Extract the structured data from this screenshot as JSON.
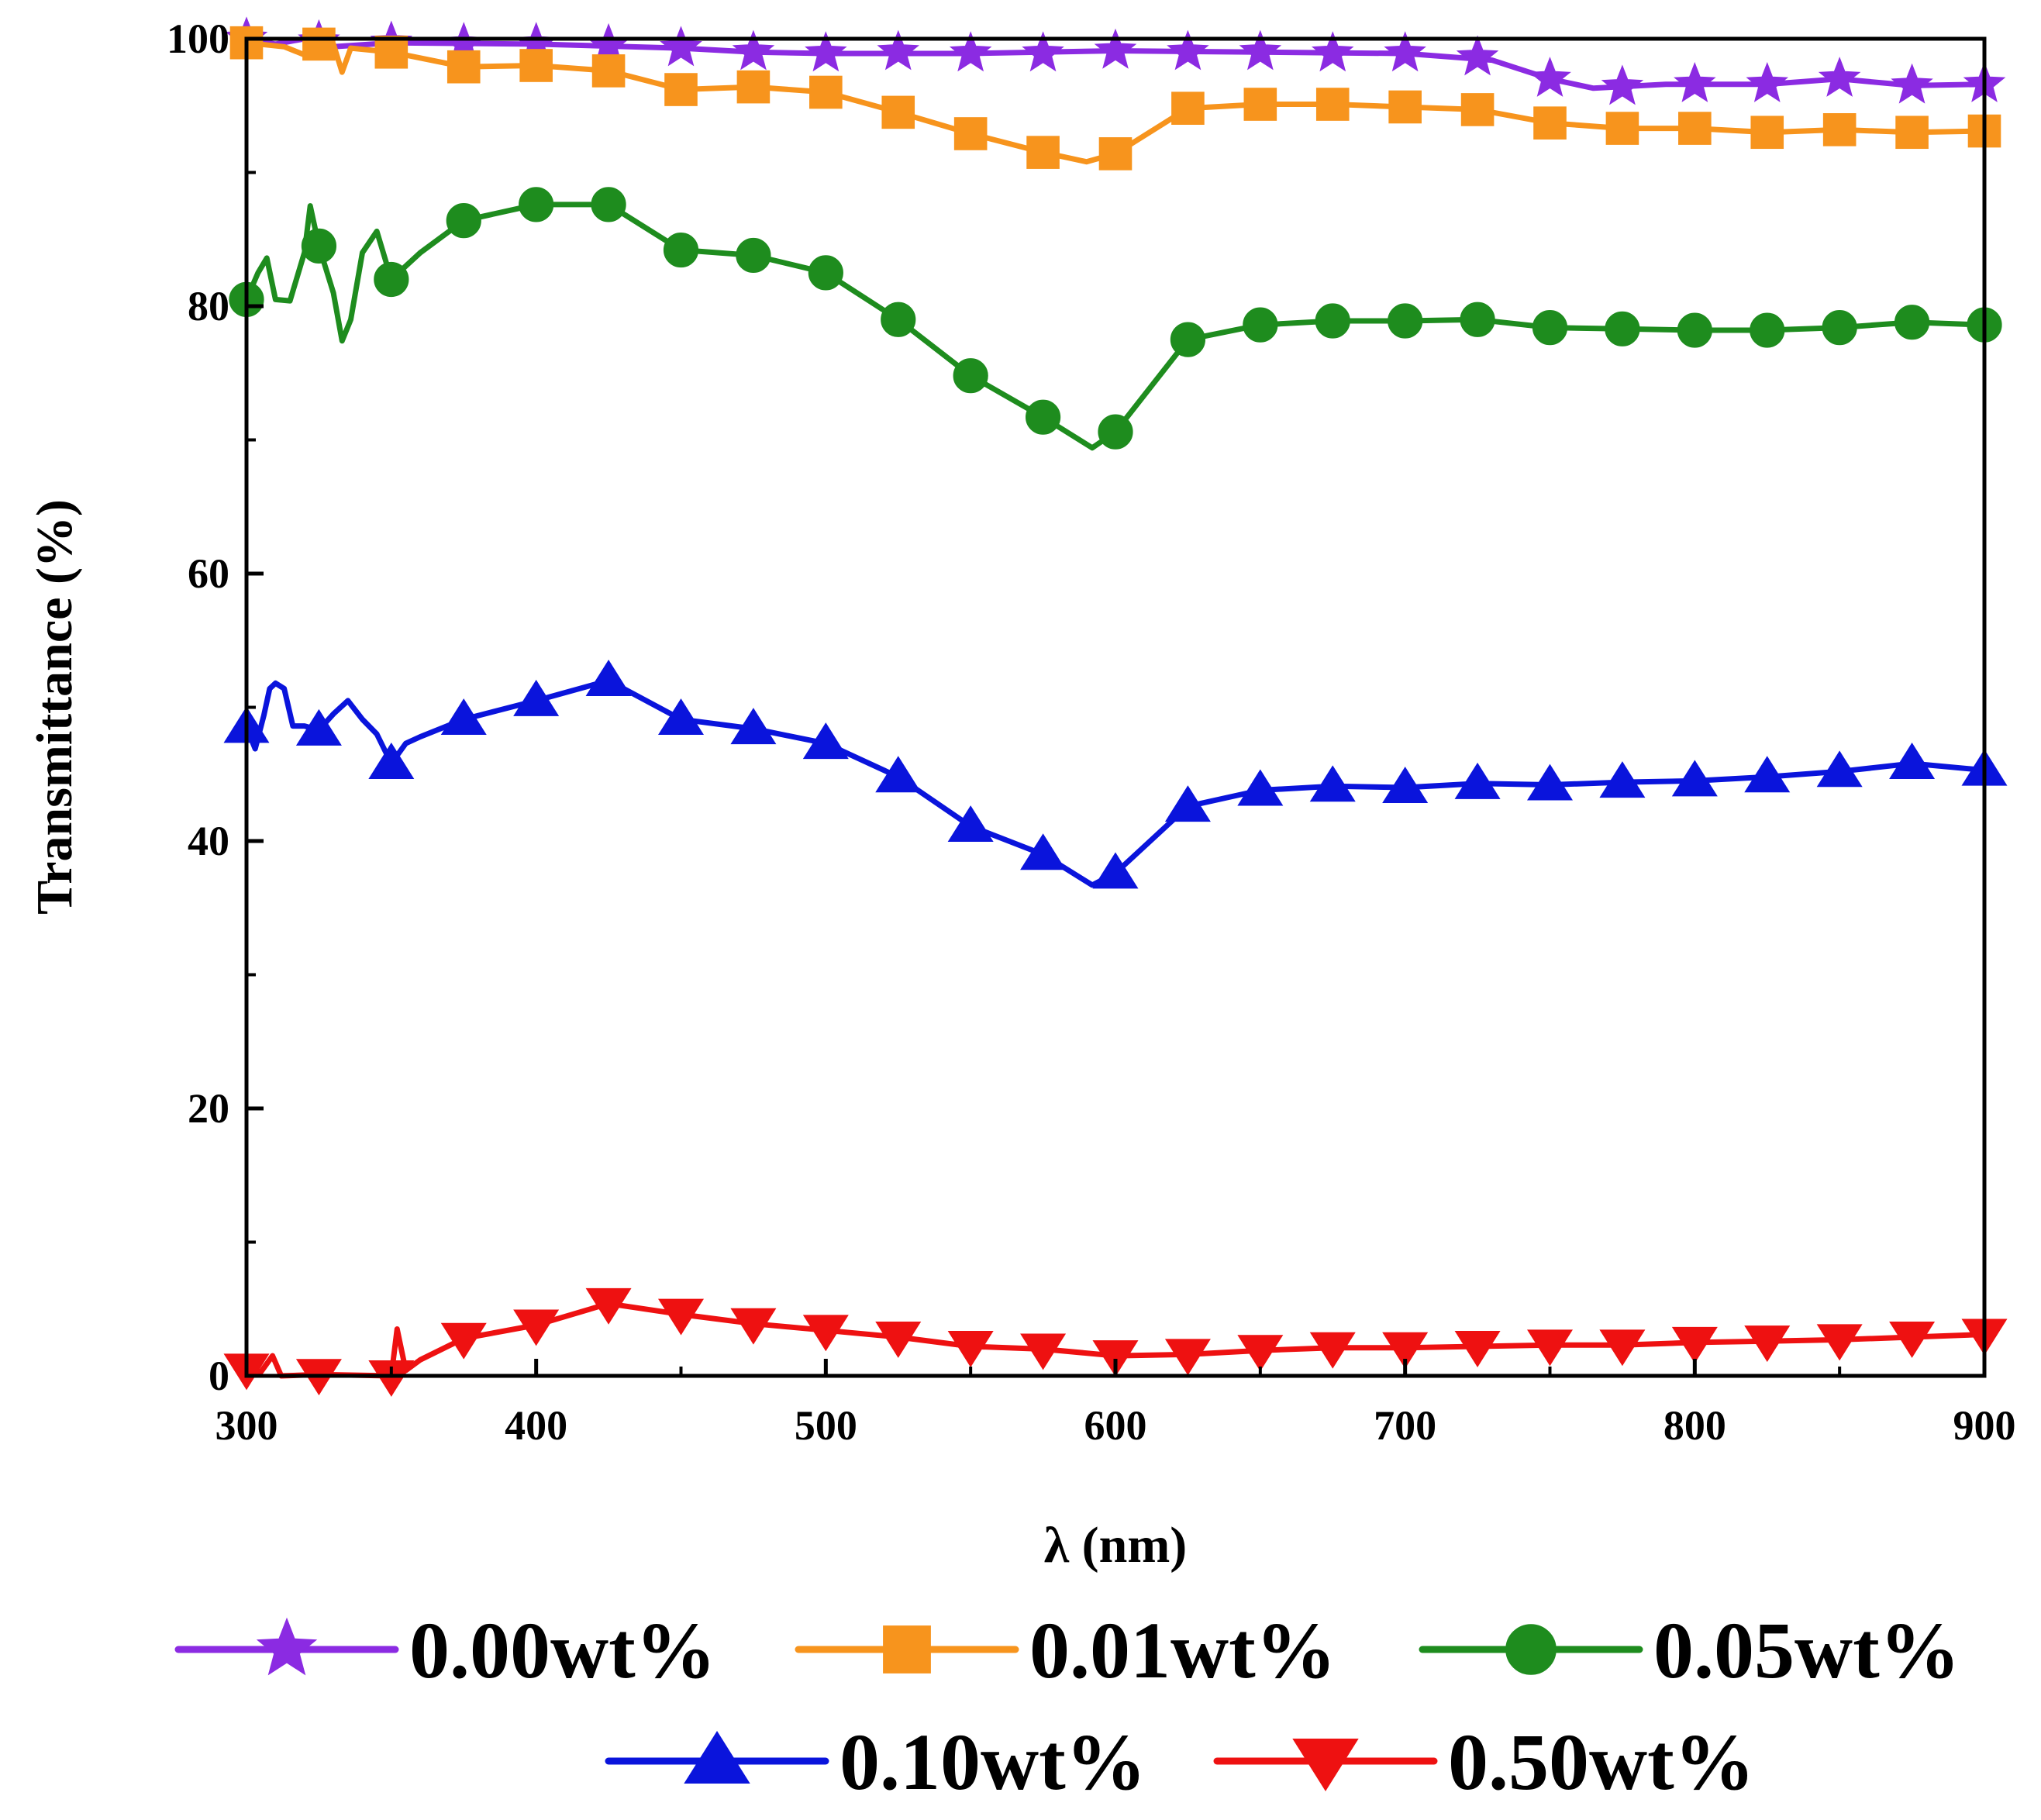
{
  "chart_data": {
    "type": "line",
    "title": "",
    "xlabel": "λ (nm)",
    "ylabel": "Transmittance (%)",
    "xlim": [
      300,
      900
    ],
    "ylim": [
      0,
      100
    ],
    "xticks": [
      300,
      400,
      500,
      600,
      700,
      800,
      900
    ],
    "yticks": [
      0,
      20,
      40,
      60,
      80,
      100
    ],
    "x_tick_labels": [
      "300",
      "400",
      "500",
      "600",
      "700",
      "800",
      "900"
    ],
    "y_tick_labels": [
      "0",
      "20",
      "40",
      "60",
      "80",
      "100"
    ],
    "legend_position": "bottom",
    "x": [
      300,
      325,
      350,
      375,
      400,
      425,
      450,
      475,
      500,
      525,
      550,
      575,
      600,
      625,
      650,
      675,
      700,
      725,
      750,
      775,
      800,
      825,
      850,
      875,
      900
    ],
    "series": [
      {
        "name": "0.00wt%",
        "color": "#8b2be2",
        "marker": "star",
        "values": [
          100,
          99.8,
          99.7,
          99.6,
          99.6,
          99.5,
          99.3,
          99.0,
          98.9,
          99.0,
          98.9,
          98.9,
          99.1,
          99.0,
          99.0,
          98.9,
          98.9,
          98.6,
          97.0,
          96.4,
          96.6,
          96.6,
          97.0,
          96.5,
          96.6
        ],
        "line_points": [
          [
            300,
            100
          ],
          [
            310,
            99.6
          ],
          [
            320,
            100
          ],
          [
            330,
            99.4
          ],
          [
            350,
            99.7
          ],
          [
            400,
            99.6
          ],
          [
            450,
            99.3
          ],
          [
            475,
            99.0
          ],
          [
            500,
            98.9
          ],
          [
            550,
            98.9
          ],
          [
            600,
            99.1
          ],
          [
            650,
            99.0
          ],
          [
            700,
            98.9
          ],
          [
            730,
            98.4
          ],
          [
            750,
            97.0
          ],
          [
            765,
            96.3
          ],
          [
            790,
            96.6
          ],
          [
            825,
            96.6
          ],
          [
            850,
            97.0
          ],
          [
            875,
            96.5
          ],
          [
            900,
            96.6
          ]
        ]
      },
      {
        "name": "0.01wt%",
        "color": "#f7941d",
        "marker": "square",
        "values": [
          99.7,
          99.6,
          99.0,
          97.9,
          98.0,
          97.6,
          96.2,
          96.4,
          96.0,
          94.5,
          92.9,
          91.5,
          91.4,
          94.8,
          95.1,
          95.1,
          94.9,
          94.7,
          93.7,
          93.3,
          93.3,
          93.0,
          93.2,
          93.0,
          93.1
        ],
        "line_points": [
          [
            300,
            99.7
          ],
          [
            313,
            99.4
          ],
          [
            320,
            98.8
          ],
          [
            330,
            99.6
          ],
          [
            333,
            97.5
          ],
          [
            336,
            99.3
          ],
          [
            350,
            99.0
          ],
          [
            375,
            97.9
          ],
          [
            400,
            98.0
          ],
          [
            425,
            97.6
          ],
          [
            450,
            96.2
          ],
          [
            475,
            96.4
          ],
          [
            500,
            96.0
          ],
          [
            525,
            94.5
          ],
          [
            550,
            92.9
          ],
          [
            575,
            91.5
          ],
          [
            590,
            90.8
          ],
          [
            600,
            91.4
          ],
          [
            625,
            94.8
          ],
          [
            650,
            95.1
          ],
          [
            675,
            95.1
          ],
          [
            700,
            94.9
          ],
          [
            725,
            94.7
          ],
          [
            750,
            93.7
          ],
          [
            775,
            93.3
          ],
          [
            800,
            93.3
          ],
          [
            825,
            93.0
          ],
          [
            850,
            93.2
          ],
          [
            875,
            93.0
          ],
          [
            900,
            93.1
          ]
        ]
      },
      {
        "name": "0.05wt%",
        "color": "#1e8c1e",
        "marker": "circle",
        "values": [
          80.5,
          84.5,
          82.0,
          86.4,
          87.6,
          87.6,
          84.2,
          83.8,
          82.5,
          79.0,
          74.8,
          71.7,
          70.6,
          77.5,
          78.6,
          78.9,
          78.9,
          79.0,
          78.4,
          78.3,
          78.2,
          78.2,
          78.4,
          78.8,
          78.6
        ],
        "line_points": [
          [
            300,
            80.5
          ],
          [
            304,
            82.5
          ],
          [
            307,
            83.6
          ],
          [
            310,
            80.5
          ],
          [
            315,
            80.4
          ],
          [
            320,
            84.0
          ],
          [
            322,
            87.5
          ],
          [
            325,
            84.5
          ],
          [
            330,
            81.0
          ],
          [
            333,
            77.4
          ],
          [
            336,
            79.0
          ],
          [
            340,
            84.0
          ],
          [
            345,
            85.6
          ],
          [
            350,
            82.0
          ],
          [
            360,
            84.0
          ],
          [
            375,
            86.4
          ],
          [
            400,
            87.6
          ],
          [
            425,
            87.6
          ],
          [
            450,
            84.2
          ],
          [
            475,
            83.8
          ],
          [
            500,
            82.5
          ],
          [
            525,
            79.0
          ],
          [
            550,
            74.8
          ],
          [
            575,
            71.7
          ],
          [
            592,
            69.4
          ],
          [
            600,
            70.6
          ],
          [
            625,
            77.5
          ],
          [
            650,
            78.6
          ],
          [
            675,
            78.9
          ],
          [
            700,
            78.9
          ],
          [
            725,
            79.0
          ],
          [
            750,
            78.4
          ],
          [
            775,
            78.3
          ],
          [
            800,
            78.2
          ],
          [
            825,
            78.2
          ],
          [
            850,
            78.4
          ],
          [
            875,
            78.8
          ],
          [
            900,
            78.6
          ]
        ]
      },
      {
        "name": "0.10wt%",
        "color": "#0a14dc",
        "marker": "triangle-up",
        "values": [
          48.5,
          48.3,
          45.8,
          49.1,
          50.5,
          52.0,
          49.1,
          48.4,
          47.3,
          44.8,
          41.1,
          39.0,
          37.6,
          42.6,
          43.8,
          44.1,
          44.0,
          44.3,
          44.2,
          44.4,
          44.5,
          44.8,
          45.2,
          45.8,
          45.3
        ],
        "line_points": [
          [
            300,
            48.5
          ],
          [
            303,
            46.9
          ],
          [
            306,
            49.4
          ],
          [
            308,
            51.4
          ],
          [
            310,
            51.8
          ],
          [
            313,
            51.4
          ],
          [
            316,
            48.6
          ],
          [
            320,
            48.6
          ],
          [
            325,
            48.3
          ],
          [
            330,
            49.5
          ],
          [
            335,
            50.5
          ],
          [
            340,
            49.1
          ],
          [
            345,
            48.0
          ],
          [
            350,
            45.8
          ],
          [
            355,
            47.3
          ],
          [
            360,
            47.8
          ],
          [
            375,
            49.1
          ],
          [
            400,
            50.5
          ],
          [
            425,
            52.0
          ],
          [
            450,
            49.1
          ],
          [
            475,
            48.4
          ],
          [
            500,
            47.3
          ],
          [
            525,
            44.8
          ],
          [
            550,
            41.1
          ],
          [
            575,
            39.0
          ],
          [
            592,
            36.7
          ],
          [
            600,
            37.6
          ],
          [
            625,
            42.6
          ],
          [
            650,
            43.8
          ],
          [
            675,
            44.1
          ],
          [
            700,
            44.0
          ],
          [
            725,
            44.3
          ],
          [
            750,
            44.2
          ],
          [
            775,
            44.4
          ],
          [
            800,
            44.5
          ],
          [
            825,
            44.8
          ],
          [
            850,
            45.2
          ],
          [
            875,
            45.8
          ],
          [
            900,
            45.3
          ]
        ]
      },
      {
        "name": "0.50wt%",
        "color": "#ee1111",
        "marker": "triangle-down",
        "values": [
          0.5,
          0.1,
          0.0,
          2.8,
          3.8,
          5.4,
          4.6,
          3.9,
          3.4,
          2.9,
          2.2,
          2.0,
          1.5,
          1.6,
          1.9,
          2.1,
          2.1,
          2.2,
          2.3,
          2.3,
          2.5,
          2.6,
          2.7,
          2.9,
          3.1
        ],
        "line_points": [
          [
            300,
            0.5
          ],
          [
            305,
            0.3
          ],
          [
            309,
            1.5
          ],
          [
            312,
            0.0
          ],
          [
            325,
            0.1
          ],
          [
            350,
            0.0
          ],
          [
            352,
            3.5
          ],
          [
            355,
            0.4
          ],
          [
            360,
            1.2
          ],
          [
            375,
            2.8
          ],
          [
            400,
            3.8
          ],
          [
            425,
            5.4
          ],
          [
            450,
            4.6
          ],
          [
            475,
            3.9
          ],
          [
            500,
            3.4
          ],
          [
            525,
            2.9
          ],
          [
            550,
            2.2
          ],
          [
            575,
            2.0
          ],
          [
            600,
            1.5
          ],
          [
            625,
            1.6
          ],
          [
            650,
            1.9
          ],
          [
            675,
            2.1
          ],
          [
            700,
            2.1
          ],
          [
            725,
            2.2
          ],
          [
            750,
            2.3
          ],
          [
            775,
            2.3
          ],
          [
            800,
            2.5
          ],
          [
            825,
            2.6
          ],
          [
            850,
            2.7
          ],
          [
            875,
            2.9
          ],
          [
            900,
            3.1
          ]
        ]
      }
    ]
  }
}
